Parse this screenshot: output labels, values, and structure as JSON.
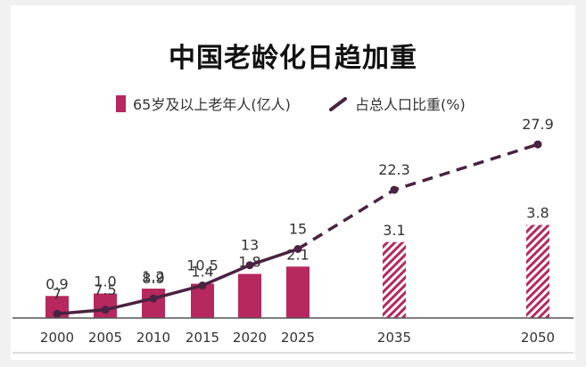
{
  "title": "中国老龄化日趋加重",
  "legend": {
    "bar_label": "65岁及以上老年人(亿人)",
    "line_label": "占总人口比重(%)"
  },
  "colors": {
    "bar": "#b7285f",
    "line": "#4a2340",
    "text": "#333333"
  },
  "chart_data": {
    "type": "bar",
    "categories": [
      "2000",
      "2005",
      "2010",
      "2015",
      "2020",
      "2025",
      "2035",
      "2050"
    ],
    "series": [
      {
        "name": "65岁及以上老年人(亿人)",
        "type": "bar",
        "values": [
          0.9,
          1.0,
          1.2,
          1.4,
          1.8,
          2.1,
          3.1,
          3.8
        ],
        "labels": [
          "0.9",
          "1.0",
          "1.2",
          "1.4",
          "1.8",
          "2.1",
          "3.1",
          "3.8"
        ],
        "projected": [
          false,
          false,
          false,
          false,
          false,
          false,
          true,
          true
        ]
      },
      {
        "name": "占总人口比重(%)",
        "type": "line",
        "values": [
          7,
          7.5,
          8.9,
          10.5,
          13,
          15,
          22.3,
          27.9
        ],
        "labels": [
          "7",
          "7.5",
          "8.9",
          "10.5",
          "13",
          "15",
          "22.3",
          "27.9"
        ],
        "projected": [
          false,
          false,
          false,
          false,
          false,
          false,
          true,
          true
        ]
      }
    ],
    "projection_style": "bars hatched and line dashed from 2025 onward"
  }
}
